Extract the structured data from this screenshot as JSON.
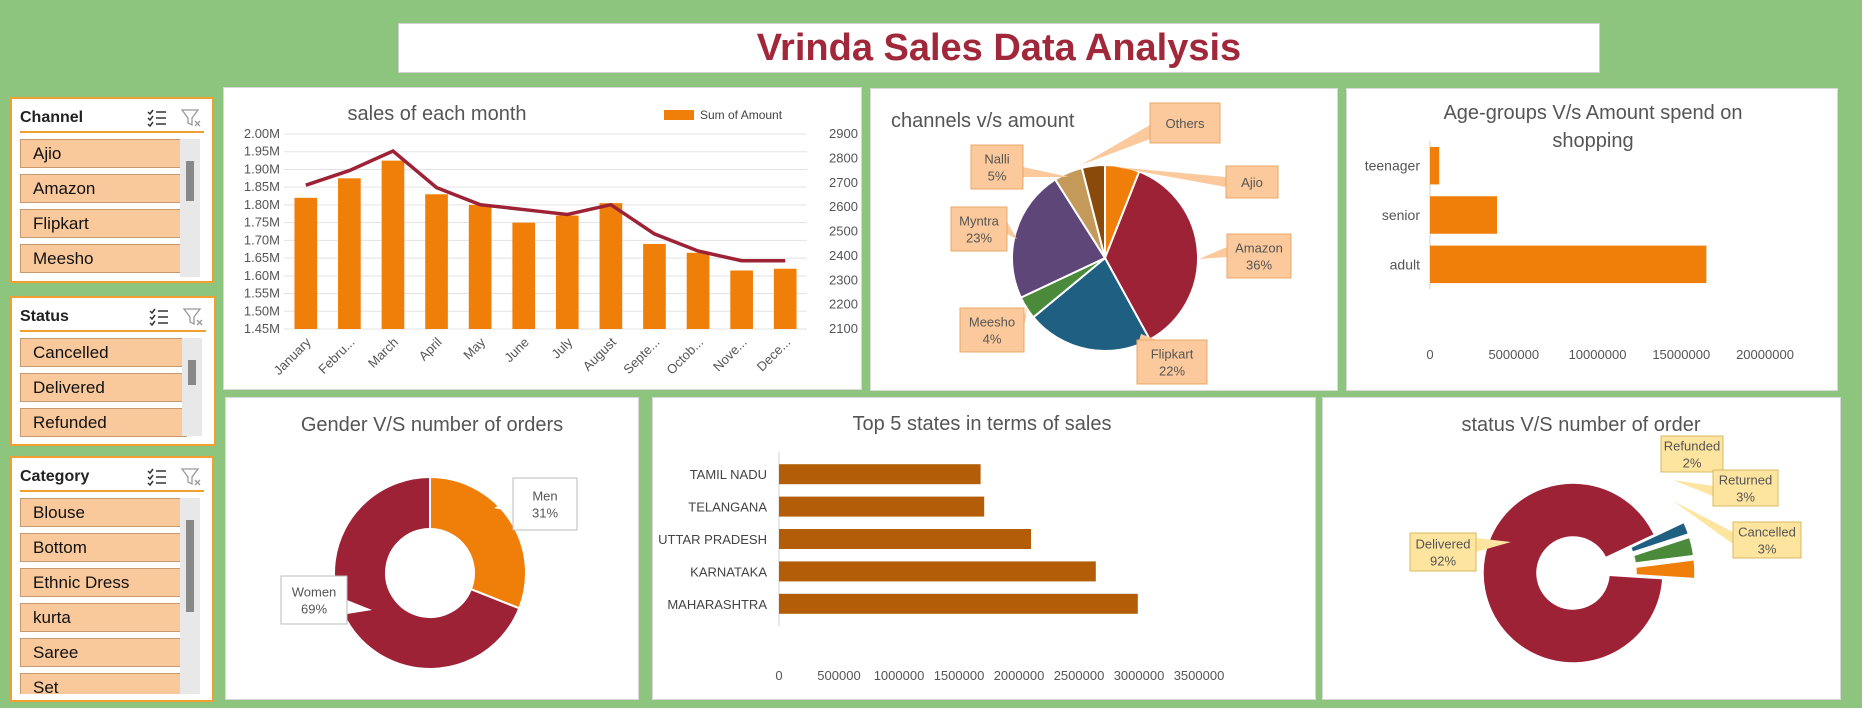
{
  "dashboard_title": "Vrinda Sales Data Analysis",
  "slicers": {
    "channel": {
      "header": "Channel",
      "items": [
        "Ajio",
        "Amazon",
        "Flipkart",
        "Meesho"
      ]
    },
    "status": {
      "header": "Status",
      "items": [
        "Cancelled",
        "Delivered",
        "Refunded"
      ]
    },
    "category": {
      "header": "Category",
      "items": [
        "Blouse",
        "Bottom",
        "Ethnic Dress",
        "kurta",
        "Saree",
        "Set"
      ]
    }
  },
  "chart_data": [
    {
      "id": "month",
      "type": "bar",
      "title": "sales of each month",
      "legend": "Sum of Amount",
      "legend_position": "top-right",
      "categories": [
        "January",
        "Febru...",
        "March",
        "April",
        "May",
        "June",
        "July",
        "August",
        "Septe...",
        "Octob...",
        "Nove...",
        "Dece..."
      ],
      "values": [
        1.82,
        1.875,
        1.925,
        1.83,
        1.8,
        1.75,
        1.77,
        1.805,
        1.69,
        1.665,
        1.615,
        1.62
      ],
      "ylim": [
        1.45,
        2.0
      ],
      "yticks": [
        "1.45M",
        "1.50M",
        "1.55M",
        "1.60M",
        "1.65M",
        "1.70M",
        "1.75M",
        "1.80M",
        "1.85M",
        "1.90M",
        "1.95M",
        "2.00M"
      ],
      "secondary_values": [
        2690,
        2750,
        2830,
        2680,
        2610,
        2590,
        2570,
        2610,
        2490,
        2420,
        2380,
        2380
      ],
      "secondary_ylim": [
        2100,
        2900
      ],
      "secondary_yticks": [
        "2100",
        "2200",
        "2300",
        "2400",
        "2500",
        "2600",
        "2700",
        "2800",
        "2900"
      ],
      "grid": true
    },
    {
      "id": "channels",
      "type": "pie",
      "title": "channels v/s amount",
      "slices": [
        {
          "label": "Ajio",
          "pct_label": "",
          "value": 6,
          "color": "#f07f09"
        },
        {
          "label": "Amazon",
          "pct_label": "36%",
          "value": 36,
          "color": "#9e2236"
        },
        {
          "label": "Flipkart",
          "pct_label": "22%",
          "value": 22,
          "color": "#1e5f82"
        },
        {
          "label": "Meesho",
          "pct_label": "4%",
          "value": 4,
          "color": "#4a8a3a"
        },
        {
          "label": "Myntra",
          "pct_label": "23%",
          "value": 23,
          "color": "#5e4679"
        },
        {
          "label": "Nalli",
          "pct_label": "5%",
          "value": 5,
          "color": "#c49a5a"
        },
        {
          "label": "Others",
          "pct_label": "",
          "value": 4,
          "color": "#8a4a0a"
        }
      ]
    },
    {
      "id": "age",
      "type": "bar",
      "orientation": "horizontal",
      "title": "Age-groups V/s Amount spend on shopping",
      "title_lines": [
        "Age-groups V/s Amount spend on",
        "shopping"
      ],
      "categories": [
        "teenager",
        "senior",
        "adult"
      ],
      "values": [
        550000,
        4000000,
        16500000
      ],
      "xlim": [
        0,
        20000000
      ],
      "xticks": [
        "0",
        "5000000",
        "10000000",
        "15000000",
        "20000000"
      ],
      "color": "#f07f09"
    },
    {
      "id": "gender",
      "type": "pie",
      "variant": "donut",
      "title": "Gender V/S number of orders",
      "slices": [
        {
          "label": "Men",
          "pct_label": "31%",
          "value": 31,
          "color": "#f07f09"
        },
        {
          "label": "Women",
          "pct_label": "69%",
          "value": 69,
          "color": "#9e2236"
        }
      ]
    },
    {
      "id": "states",
      "type": "bar",
      "orientation": "horizontal",
      "title": "Top 5 states in terms of sales",
      "categories": [
        "TAMIL NADU",
        "TELANGANA",
        "UTTAR PRADESH",
        "KARNATAKA",
        "MAHARASHTRA"
      ],
      "values": [
        1680000,
        1710000,
        2100000,
        2640000,
        2990000
      ],
      "xlim": [
        0,
        3500000
      ],
      "xticks": [
        "0",
        "500000",
        "1000000",
        "1500000",
        "2000000",
        "2500000",
        "3000000",
        "3500000"
      ],
      "color": "#b35d08"
    },
    {
      "id": "status",
      "type": "pie",
      "variant": "donut",
      "title": "status V/S number of order",
      "slices": [
        {
          "label": "Delivered",
          "pct_label": "92%",
          "value": 92,
          "color": "#9e2236"
        },
        {
          "label": "Refunded",
          "pct_label": "2%",
          "value": 2,
          "color": "#1e5f82"
        },
        {
          "label": "Returned",
          "pct_label": "3%",
          "value": 3,
          "color": "#4a8a3a"
        },
        {
          "label": "Cancelled",
          "pct_label": "3%",
          "value": 3,
          "color": "#f07f09"
        }
      ]
    }
  ]
}
